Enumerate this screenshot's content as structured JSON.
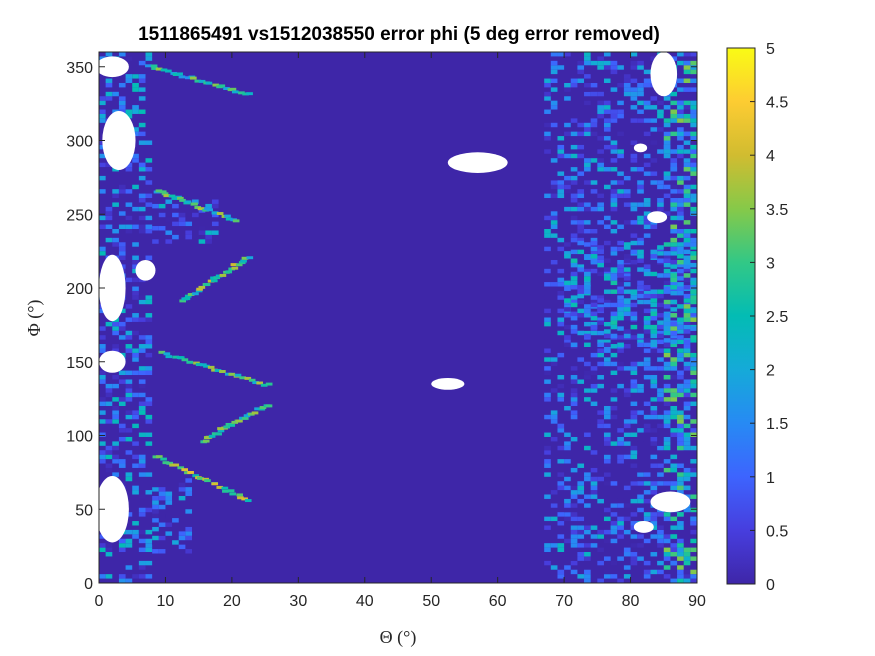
{
  "chart_data": {
    "type": "heatmap",
    "title": "1511865491 vs1512038550 error phi (5 deg error removed)",
    "xlabel": "Θ (°)",
    "ylabel": "Φ (°)",
    "xlim": [
      0,
      90
    ],
    "ylim": [
      0,
      360
    ],
    "xticks": [
      0,
      10,
      20,
      30,
      40,
      50,
      60,
      70,
      80,
      90
    ],
    "yticks": [
      0,
      50,
      100,
      150,
      200,
      250,
      300,
      350
    ],
    "colorbar": {
      "min": 0,
      "max": 5,
      "ticks": [
        0,
        0.5,
        1,
        1.5,
        2,
        2.5,
        3,
        3.5,
        4,
        4.5,
        5
      ],
      "tick_labels": [
        "0",
        "0.5",
        "1",
        "1.5",
        "2",
        "2.5",
        "3",
        "3.5",
        "4",
        "4.5",
        "5"
      ],
      "colormap": "parula"
    },
    "background_value": 0.1,
    "regions": [
      {
        "theta": [
          0,
          8
        ],
        "phi": [
          0,
          360
        ],
        "value": 1.2
      },
      {
        "theta": [
          67,
          90
        ],
        "phi": [
          0,
          360
        ],
        "value": 1.0
      },
      {
        "theta": [
          70,
          90
        ],
        "phi": [
          160,
          230
        ],
        "value": 1.4
      },
      {
        "theta": [
          85,
          90
        ],
        "phi": [
          0,
          360
        ],
        "value": 2.2
      },
      {
        "theta": [
          8,
          18
        ],
        "phi": [
          230,
          260
        ],
        "value": 1.1
      },
      {
        "theta": [
          8,
          14
        ],
        "phi": [
          20,
          70
        ],
        "value": 0.9
      }
    ],
    "streaks": [
      {
        "from": [
          8,
          85
        ],
        "to": [
          22,
          55
        ],
        "value": 3.2
      },
      {
        "from": [
          9,
          155
        ],
        "to": [
          25,
          133
        ],
        "value": 3.0
      },
      {
        "from": [
          15,
          95
        ],
        "to": [
          25,
          120
        ],
        "value": 3.0
      },
      {
        "from": [
          12,
          190
        ],
        "to": [
          22,
          220
        ],
        "value": 3.0
      },
      {
        "from": [
          8,
          265
        ],
        "to": [
          20,
          245
        ],
        "value": 2.8
      },
      {
        "from": [
          7,
          350
        ],
        "to": [
          22,
          330
        ],
        "value": 2.5
      }
    ],
    "missing_regions": [
      {
        "center": [
          2,
          50
        ],
        "size": [
          5,
          45
        ]
      },
      {
        "center": [
          2,
          200
        ],
        "size": [
          4,
          45
        ]
      },
      {
        "center": [
          3,
          300
        ],
        "size": [
          5,
          40
        ]
      },
      {
        "center": [
          7,
          212
        ],
        "size": [
          3,
          14
        ]
      },
      {
        "center": [
          2,
          150
        ],
        "size": [
          4,
          15
        ]
      },
      {
        "center": [
          2,
          350
        ],
        "size": [
          5,
          14
        ]
      },
      {
        "center": [
          57,
          285
        ],
        "size": [
          9,
          14
        ]
      },
      {
        "center": [
          52.5,
          135
        ],
        "size": [
          5,
          8
        ]
      },
      {
        "center": [
          85,
          345
        ],
        "size": [
          4,
          30
        ]
      },
      {
        "center": [
          86,
          55
        ],
        "size": [
          6,
          14
        ]
      },
      {
        "center": [
          84,
          248
        ],
        "size": [
          3,
          8
        ]
      },
      {
        "center": [
          81.5,
          295
        ],
        "size": [
          2,
          6
        ]
      },
      {
        "center": [
          82,
          38
        ],
        "size": [
          3,
          8
        ]
      }
    ]
  }
}
